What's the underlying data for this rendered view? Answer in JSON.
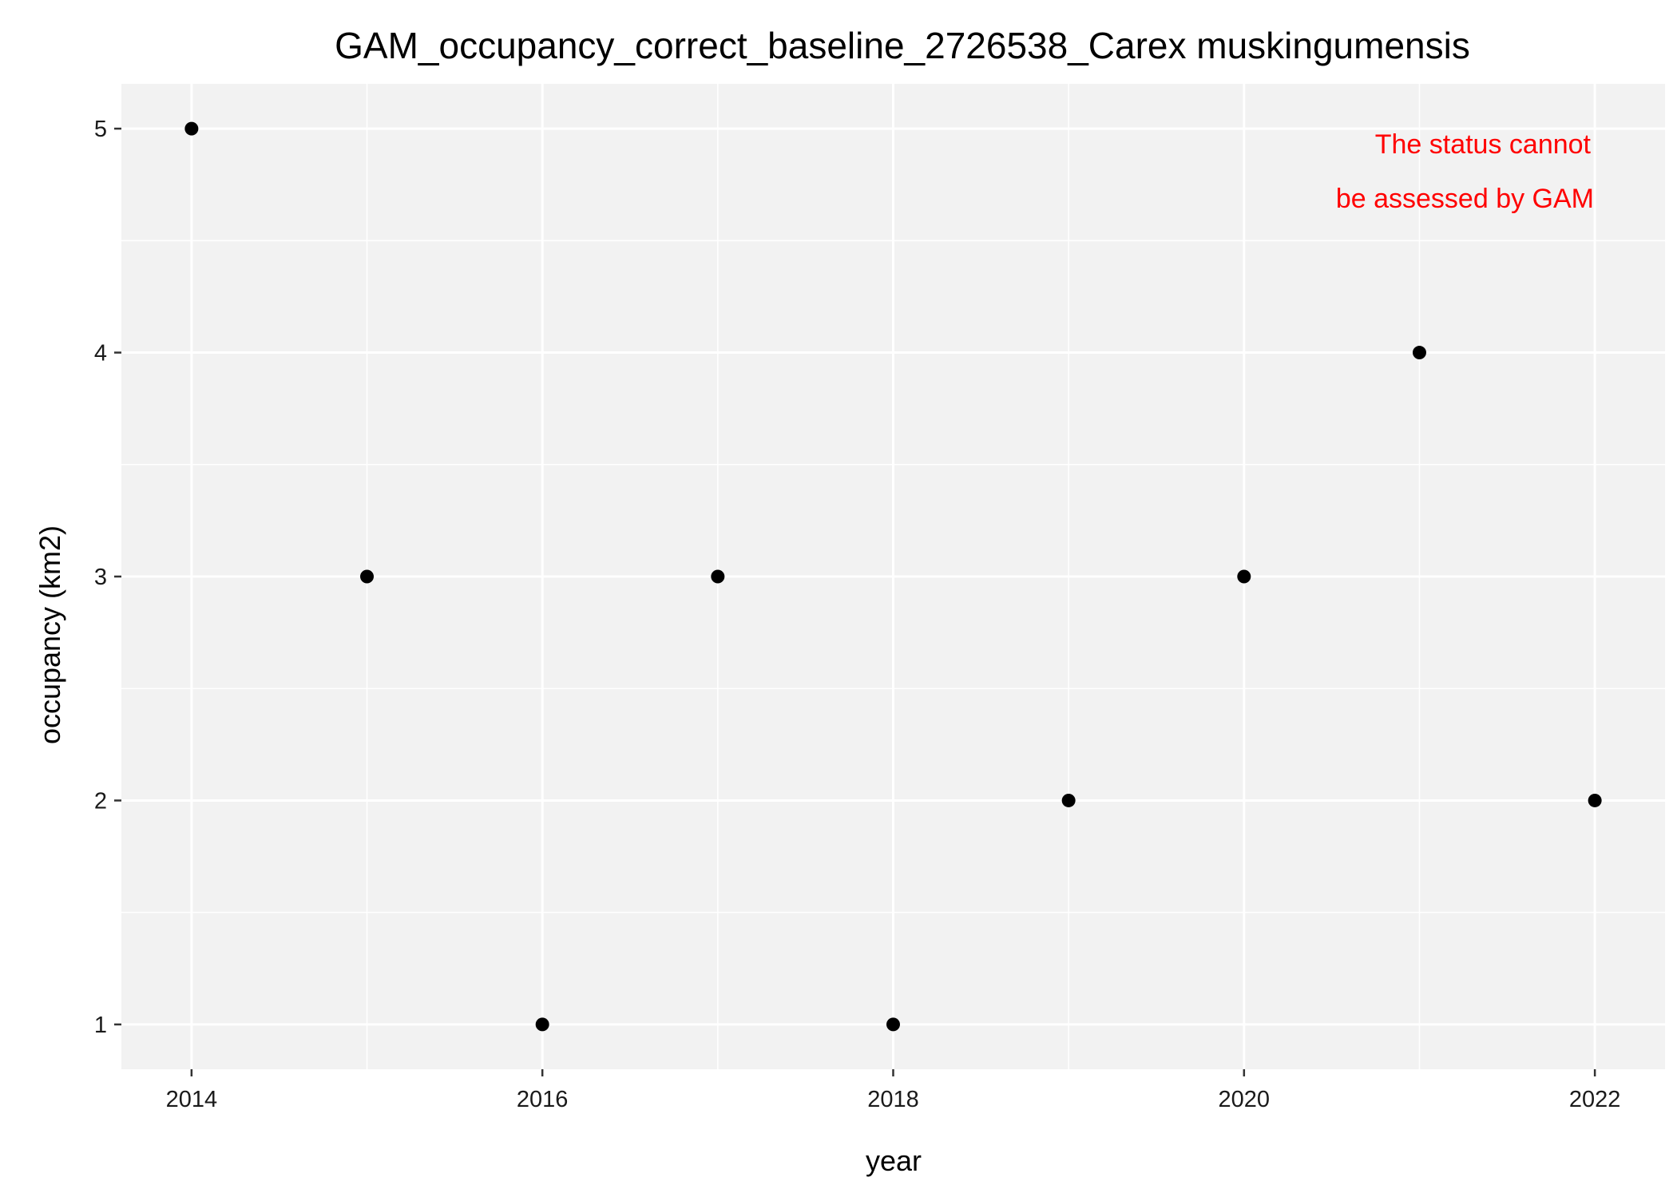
{
  "chart_data": {
    "type": "scatter",
    "title": "GAM_occupancy_correct_baseline_2726538_Carex muskingumensis",
    "xlabel": "year",
    "ylabel": "occupancy (km2)",
    "x": [
      2014,
      2015,
      2016,
      2017,
      2018,
      2019,
      2020,
      2021,
      2022
    ],
    "y": [
      5,
      3,
      1,
      3,
      1,
      2,
      3,
      4,
      2
    ],
    "xlim": [
      2013.6,
      2022.4
    ],
    "ylim": [
      0.8,
      5.2
    ],
    "x_ticks": [
      2014,
      2016,
      2018,
      2020,
      2022
    ],
    "y_ticks": [
      1,
      2,
      3,
      4,
      5
    ],
    "grid": true,
    "annotation": {
      "lines": [
        "The status cannot",
        "be assessed by GAM"
      ],
      "color": "#ff0000"
    },
    "point_color": "#000000",
    "panel_color": "#f2f2f2",
    "grid_color": "#ffffff"
  }
}
